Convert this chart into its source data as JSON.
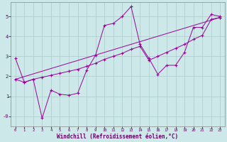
{
  "bg_color": "#cce8e8",
  "line_color": "#990099",
  "xlim": [
    -0.5,
    23.5
  ],
  "ylim": [
    -0.5,
    5.7
  ],
  "yticks": [
    0,
    1,
    2,
    3,
    4,
    5
  ],
  "ytick_labels": [
    "-0",
    "1",
    "2",
    "3",
    "4",
    "5"
  ],
  "xticks": [
    0,
    1,
    2,
    3,
    4,
    5,
    6,
    7,
    8,
    9,
    10,
    11,
    12,
    13,
    14,
    15,
    16,
    17,
    18,
    19,
    20,
    21,
    22,
    23
  ],
  "xlabel": "Windchill (Refroidissement éolien,°C)",
  "series1_x": [
    0,
    1,
    2,
    3,
    4,
    5,
    6,
    7,
    8,
    9,
    10,
    11,
    12,
    13,
    14,
    15,
    16,
    17,
    18,
    19,
    20,
    21,
    22,
    23
  ],
  "series1_y": [
    2.9,
    1.7,
    1.85,
    -0.1,
    1.3,
    1.1,
    1.05,
    1.15,
    2.3,
    3.05,
    4.55,
    4.65,
    5.0,
    5.5,
    3.6,
    2.9,
    2.1,
    2.55,
    2.55,
    3.2,
    4.45,
    4.45,
    5.1,
    5.0
  ],
  "series2_x": [
    0,
    1,
    2,
    3,
    4,
    5,
    6,
    7,
    8,
    9,
    10,
    11,
    12,
    13,
    14,
    15,
    16,
    17,
    18,
    19,
    20,
    21,
    22,
    23
  ],
  "series2_y": [
    1.85,
    1.7,
    1.85,
    1.95,
    2.05,
    2.15,
    2.25,
    2.35,
    2.5,
    2.65,
    2.85,
    3.0,
    3.15,
    3.35,
    3.5,
    2.8,
    3.0,
    3.2,
    3.4,
    3.6,
    3.85,
    4.05,
    4.85,
    4.95
  ],
  "series3_x": [
    0,
    23
  ],
  "series3_y": [
    1.85,
    4.95
  ],
  "grid_color": "#aacccc",
  "spine_color": "#888888",
  "tick_label_color": "#660066",
  "xlabel_color": "#660066"
}
